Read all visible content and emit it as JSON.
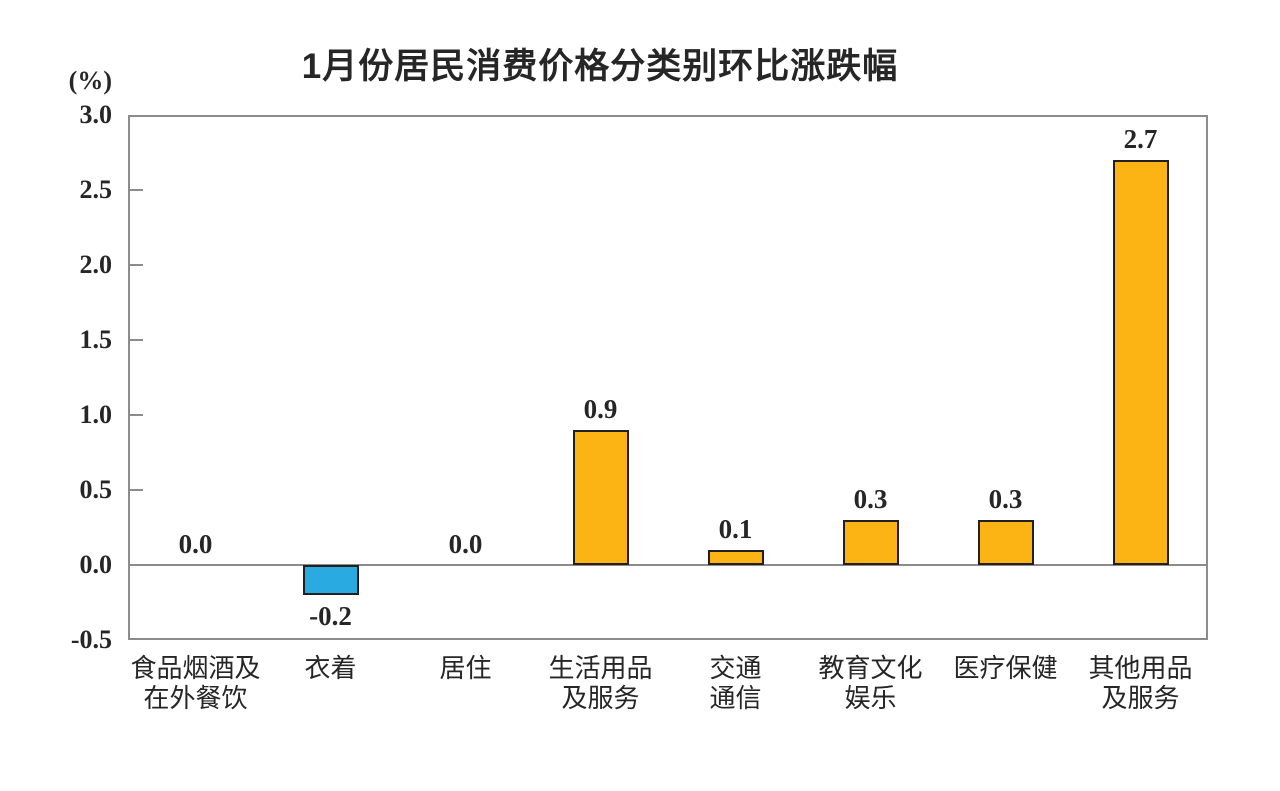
{
  "chart_data": {
    "type": "bar",
    "title": "1月份居民消费价格分类别环比涨跌幅",
    "unit_label": "(%)",
    "categories": [
      [
        "食品烟酒及",
        "在外餐饮"
      ],
      [
        "衣着"
      ],
      [
        "居住"
      ],
      [
        "生活用品",
        "及服务"
      ],
      [
        "交通",
        "通信"
      ],
      [
        "教育文化",
        "娱乐"
      ],
      [
        "医疗保健"
      ],
      [
        "其他用品",
        "及服务"
      ]
    ],
    "values": [
      0.0,
      -0.2,
      0.0,
      0.9,
      0.1,
      0.3,
      0.3,
      2.7
    ],
    "value_labels": [
      "0.0",
      "-0.2",
      "0.0",
      "0.9",
      "0.1",
      "0.3",
      "0.3",
      "2.7"
    ],
    "xlabel": "",
    "ylabel": "(%)",
    "ylim": [
      -0.5,
      3.0
    ],
    "yticks": [
      3.0,
      2.5,
      2.0,
      1.5,
      1.0,
      0.5,
      0.0,
      -0.5
    ],
    "ytick_labels": [
      "3.0",
      "2.5",
      "2.0",
      "1.5",
      "1.0",
      "0.5",
      "0.0",
      "-0.5"
    ],
    "grid": false,
    "legend": false,
    "colors": {
      "bar_positive": "#FBB414",
      "bar_negative": "#29ABE2",
      "bar_border": "#231F20",
      "axis_line": "#8C8C8C",
      "text": "#262626"
    }
  }
}
